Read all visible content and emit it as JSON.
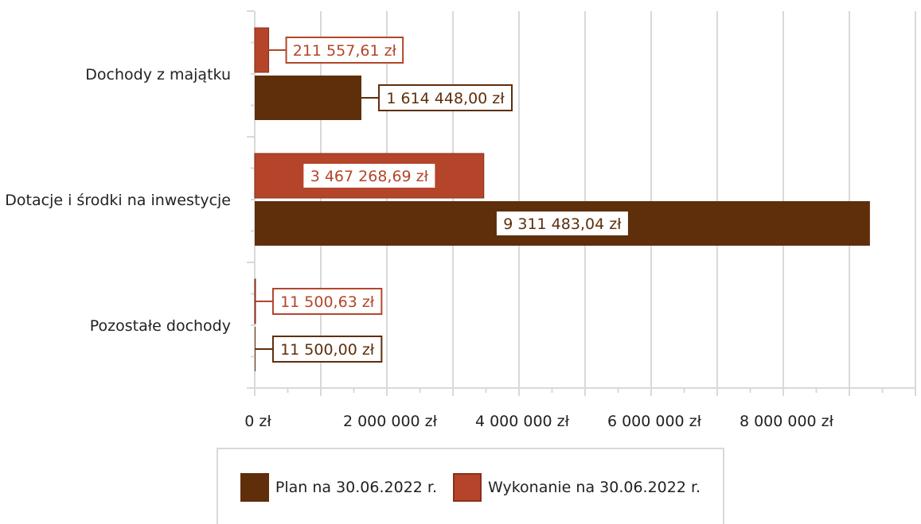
{
  "chart_data": {
    "type": "bar",
    "orientation": "horizontal",
    "categories": [
      "Dochody z majątku",
      "Dotacje i środki na inwestycje",
      "Pozostałe dochody"
    ],
    "series": [
      {
        "name": "Plan na 30.06.2022 r.",
        "color": "#5f2e0b",
        "values": [
          1614448.0,
          9311483.04,
          11500.0
        ],
        "labels": [
          "1 614 448,00 zł",
          "9 311 483,04 zł",
          "11 500,00 zł"
        ]
      },
      {
        "name": "Wykonanie na 30.06.2022 r.",
        "color": "#b4452a",
        "values": [
          211557.61,
          3467268.69,
          11500.63
        ],
        "labels": [
          "211 557,61 zł",
          "3 467 268,69 zł",
          "11 500,63 zł"
        ]
      }
    ],
    "x_ticks": [
      "0 zł",
      "2 000 000 zł",
      "4 000 000 zł",
      "6 000 000 zł",
      "8 000 000 zł"
    ],
    "x_tick_values": [
      0,
      2000000,
      4000000,
      6000000,
      8000000
    ],
    "xlim": [
      0,
      10000000
    ],
    "grid": true,
    "legend_position": "bottom"
  }
}
